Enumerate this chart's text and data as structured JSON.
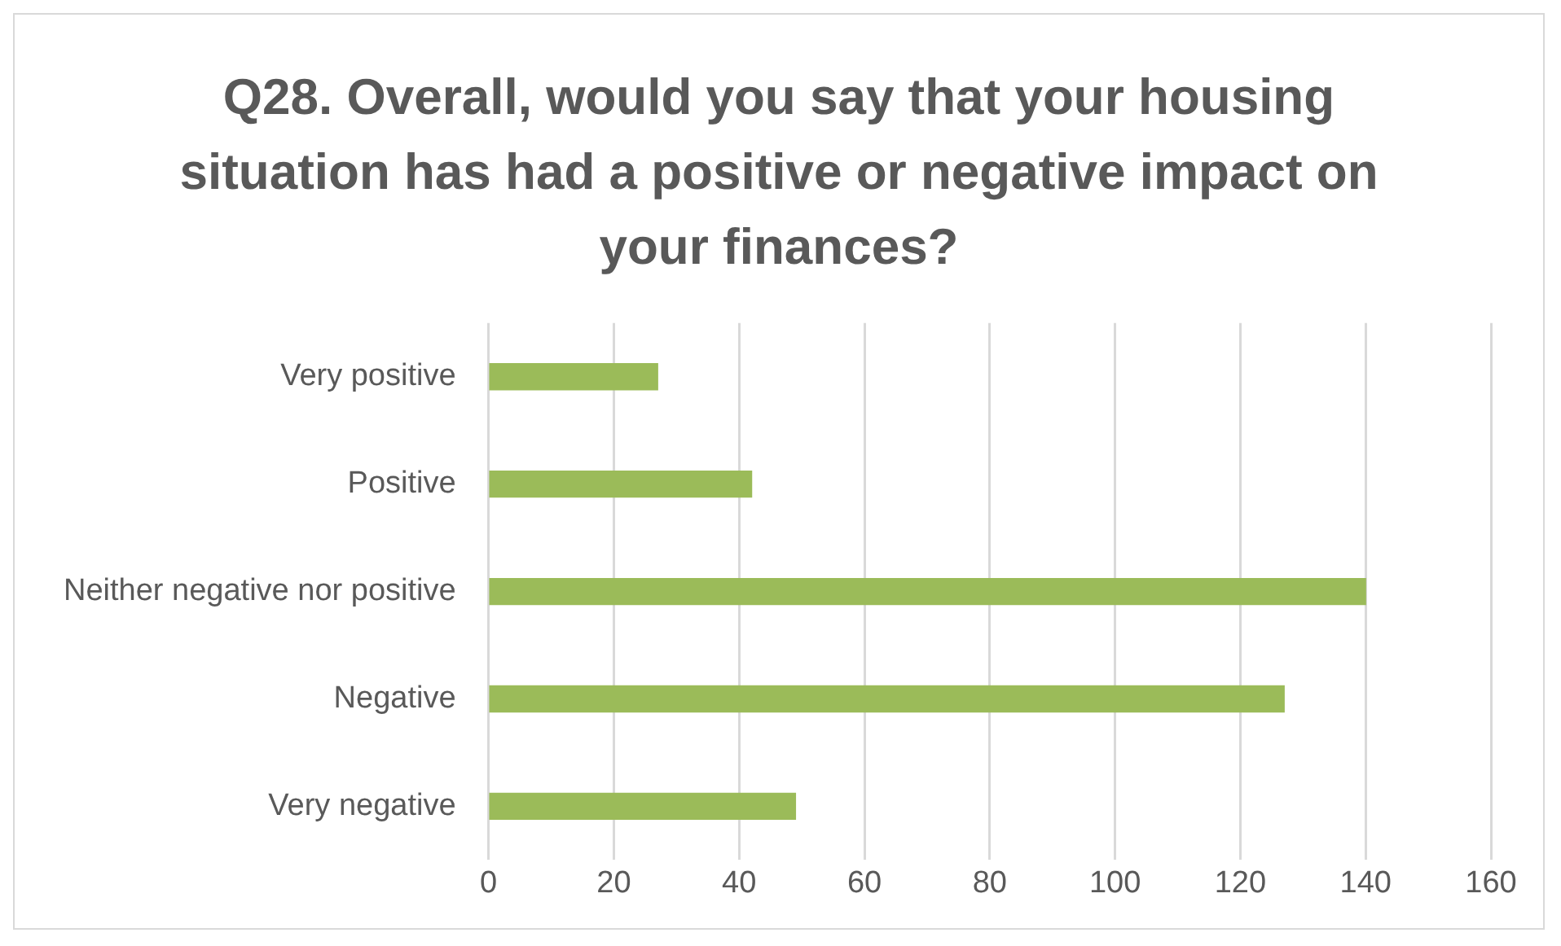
{
  "chart_data": {
    "type": "bar",
    "orientation": "horizontal",
    "title": "Q28. Overall, would you say that your housing situation has had a positive or negative impact on your finances?",
    "categories": [
      "Very positive",
      "Positive",
      "Neither negative nor positive",
      "Negative",
      "Very negative"
    ],
    "values": [
      27,
      42,
      140,
      127,
      49
    ],
    "color": "#9bbb59",
    "xlim": [
      0,
      160
    ],
    "xticks": [
      0,
      20,
      40,
      60,
      80,
      100,
      120,
      140,
      160
    ],
    "grid": "x",
    "legend": false
  }
}
